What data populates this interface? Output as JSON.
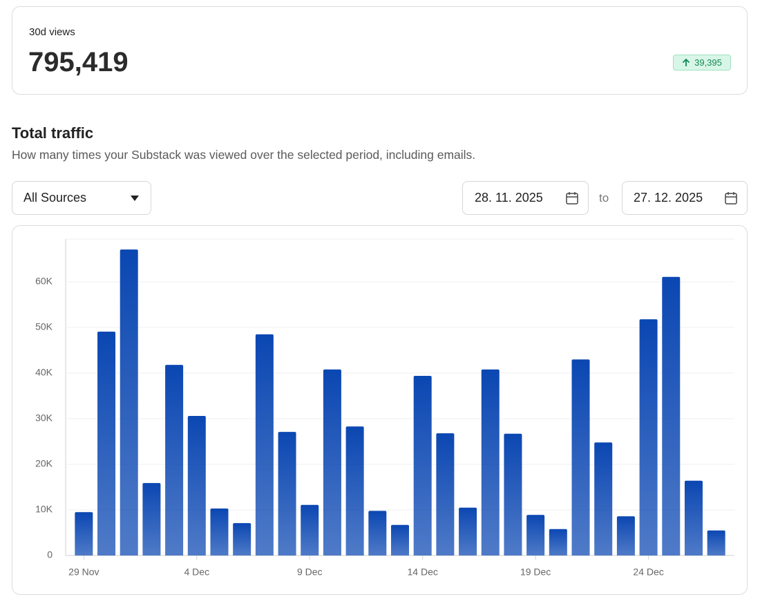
{
  "stat": {
    "label": "30d views",
    "value": "795,419",
    "change": "39,395"
  },
  "section": {
    "title": "Total traffic",
    "subtitle": "How many times your Substack was viewed over the selected period, including emails."
  },
  "filters": {
    "source": "All Sources",
    "from": "28. 11. 2025",
    "separator": "to",
    "to": "27. 12. 2025"
  },
  "chart_data": {
    "type": "bar",
    "categories": [
      "29 Nov",
      null,
      null,
      null,
      null,
      "4 Dec",
      null,
      null,
      null,
      null,
      "9 Dec",
      null,
      null,
      null,
      null,
      "14 Dec",
      null,
      null,
      null,
      null,
      "19 Dec",
      null,
      null,
      null,
      null,
      "24 Dec",
      null,
      null,
      null
    ],
    "values": [
      9500,
      49100,
      67100,
      15900,
      41800,
      30600,
      10300,
      7100,
      48500,
      27100,
      11100,
      40800,
      28300,
      9800,
      6700,
      39400,
      26800,
      10500,
      40800,
      26700,
      8900,
      5800,
      43000,
      24800,
      8600,
      51800,
      61100,
      16400,
      5500
    ],
    "color": "#0b47b2",
    "ylim": [
      0,
      69400
    ],
    "yticks": [
      0,
      {
        "value": 10000,
        "label": "10K"
      },
      {
        "value": 20000,
        "label": "20K"
      },
      {
        "value": 30000,
        "label": "30K"
      },
      {
        "value": 40000,
        "label": "40K"
      },
      {
        "value": 50000,
        "label": "50K"
      },
      {
        "value": 60000,
        "label": "60K"
      }
    ],
    "grid": true
  }
}
